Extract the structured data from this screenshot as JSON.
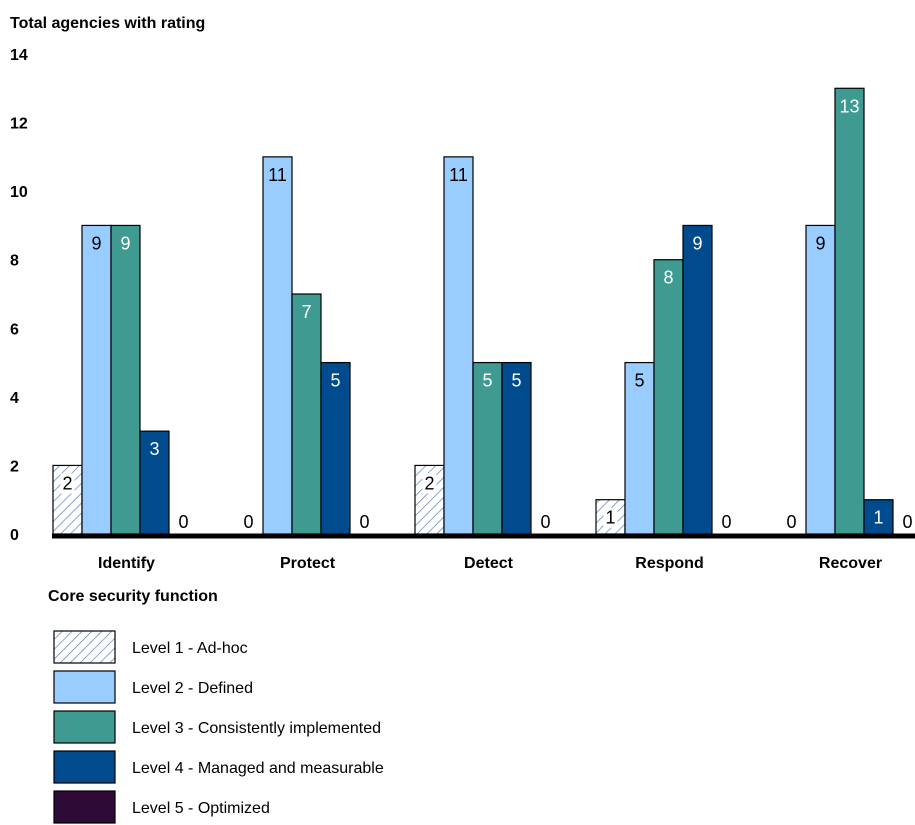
{
  "chart_data": {
    "type": "bar",
    "ylabel": "Total agencies with rating",
    "xlabel": "Core security function",
    "ylim": [
      0,
      14
    ],
    "yticks": [
      "0",
      "2",
      "4",
      "6",
      "8",
      "10",
      "12",
      "14"
    ],
    "categories": [
      "Identify",
      "Protect",
      "Detect",
      "Respond",
      "Recover"
    ],
    "series": [
      {
        "name": "Level 1 - Ad-hoc",
        "values": [
          2,
          0,
          2,
          1,
          0
        ],
        "color": "#ffffff",
        "pattern": "hatch"
      },
      {
        "name": "Level 2 - Defined",
        "values": [
          9,
          11,
          11,
          5,
          9
        ],
        "color": "#99ccff"
      },
      {
        "name": "Level 3 - Consistently implemented",
        "values": [
          9,
          7,
          5,
          8,
          13
        ],
        "color": "#3f9b92"
      },
      {
        "name": "Level 4 - Managed and measurable",
        "values": [
          3,
          5,
          5,
          9,
          1
        ],
        "color": "#004b8d"
      },
      {
        "name": "Level 5 - Optimized",
        "values": [
          0,
          0,
          0,
          0,
          0
        ],
        "color": "#2e0a36"
      }
    ],
    "grid": false,
    "legend_position": "bottom"
  }
}
